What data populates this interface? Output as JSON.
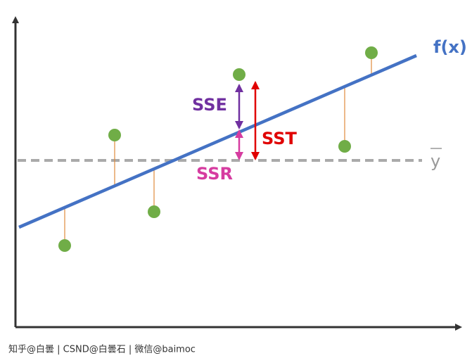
{
  "labels": {
    "fx": "f(x)",
    "sse": "SSE",
    "sst": "SST",
    "ssr": "SSR",
    "ybar": "y"
  },
  "footer": "知乎@白曇 | CSND@白曇石 | 微信@baimoc"
}
